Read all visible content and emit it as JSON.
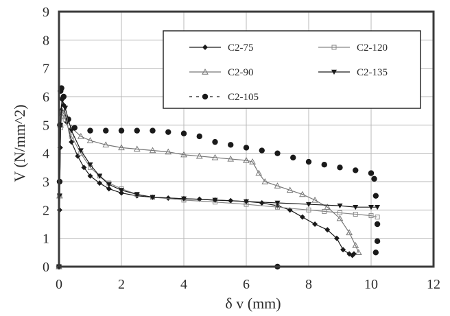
{
  "chart_data": {
    "type": "scatter",
    "title": "",
    "xlabel": "δ v (mm)",
    "ylabel": "V (N/mm^2)",
    "xlim": [
      0,
      12
    ],
    "ylim": [
      0,
      9
    ],
    "xticks": [
      "0",
      "2",
      "4",
      "6",
      "8",
      "10",
      "12"
    ],
    "yticks": [
      "0",
      "1",
      "2",
      "3",
      "4",
      "5",
      "6",
      "7",
      "8",
      "9"
    ],
    "grid": true,
    "legend_position": "top-right",
    "series": [
      {
        "name": "C2-75",
        "marker": "diamond",
        "color": "#1a1a1a",
        "line": true,
        "points": [
          [
            0,
            0
          ],
          [
            0.02,
            2.0
          ],
          [
            0.04,
            4.2
          ],
          [
            0.06,
            5.5
          ],
          [
            0.1,
            5.9
          ],
          [
            0.15,
            5.7
          ],
          [
            0.25,
            5.1
          ],
          [
            0.4,
            4.4
          ],
          [
            0.6,
            3.9
          ],
          [
            0.8,
            3.5
          ],
          [
            1.0,
            3.2
          ],
          [
            1.3,
            2.95
          ],
          [
            1.6,
            2.75
          ],
          [
            2.0,
            2.6
          ],
          [
            2.5,
            2.5
          ],
          [
            3.0,
            2.45
          ],
          [
            3.5,
            2.42
          ],
          [
            4.0,
            2.4
          ],
          [
            4.5,
            2.38
          ],
          [
            5.0,
            2.35
          ],
          [
            5.5,
            2.33
          ],
          [
            6.0,
            2.3
          ],
          [
            6.5,
            2.25
          ],
          [
            7.0,
            2.15
          ],
          [
            7.4,
            2.0
          ],
          [
            7.8,
            1.75
          ],
          [
            8.2,
            1.5
          ],
          [
            8.6,
            1.3
          ],
          [
            8.9,
            1.0
          ],
          [
            9.1,
            0.6
          ],
          [
            9.3,
            0.45
          ],
          [
            9.4,
            0.4
          ],
          [
            9.45,
            0.45
          ]
        ]
      },
      {
        "name": "C2-90",
        "marker": "triangle-up",
        "color": "#777777",
        "line": true,
        "points": [
          [
            0,
            0
          ],
          [
            0.02,
            2.5
          ],
          [
            0.05,
            5.0
          ],
          [
            0.1,
            5.5
          ],
          [
            0.2,
            5.3
          ],
          [
            0.4,
            4.9
          ],
          [
            0.7,
            4.6
          ],
          [
            1.0,
            4.45
          ],
          [
            1.5,
            4.3
          ],
          [
            2.0,
            4.2
          ],
          [
            2.5,
            4.15
          ],
          [
            3.0,
            4.1
          ],
          [
            3.5,
            4.05
          ],
          [
            4.0,
            3.95
          ],
          [
            4.5,
            3.9
          ],
          [
            5.0,
            3.85
          ],
          [
            5.5,
            3.8
          ],
          [
            6.0,
            3.75
          ],
          [
            6.2,
            3.7
          ],
          [
            6.4,
            3.3
          ],
          [
            6.6,
            3.0
          ],
          [
            7.0,
            2.85
          ],
          [
            7.4,
            2.7
          ],
          [
            7.8,
            2.55
          ],
          [
            8.2,
            2.35
          ],
          [
            8.6,
            2.1
          ],
          [
            9.0,
            1.7
          ],
          [
            9.3,
            1.2
          ],
          [
            9.5,
            0.75
          ],
          [
            9.6,
            0.5
          ]
        ]
      },
      {
        "name": "C2-105",
        "marker": "circle",
        "color": "#1a1a1a",
        "line": false,
        "points": [
          [
            0,
            0
          ],
          [
            0.02,
            3.0
          ],
          [
            0.03,
            5.0
          ],
          [
            0.05,
            6.2
          ],
          [
            0.08,
            6.3
          ],
          [
            0.15,
            6.0
          ],
          [
            0.3,
            5.2
          ],
          [
            0.5,
            4.9
          ],
          [
            1.0,
            4.8
          ],
          [
            1.5,
            4.8
          ],
          [
            2.0,
            4.8
          ],
          [
            2.5,
            4.8
          ],
          [
            3.0,
            4.8
          ],
          [
            3.5,
            4.75
          ],
          [
            4.0,
            4.7
          ],
          [
            4.5,
            4.6
          ],
          [
            5.0,
            4.4
          ],
          [
            5.5,
            4.3
          ],
          [
            6.0,
            4.2
          ],
          [
            6.5,
            4.1
          ],
          [
            7.0,
            4.0
          ],
          [
            7.5,
            3.85
          ],
          [
            8.0,
            3.7
          ],
          [
            8.5,
            3.6
          ],
          [
            9.0,
            3.5
          ],
          [
            9.5,
            3.4
          ],
          [
            10.0,
            3.3
          ],
          [
            10.1,
            3.1
          ],
          [
            10.15,
            2.5
          ],
          [
            10.2,
            1.5
          ],
          [
            10.2,
            0.9
          ],
          [
            10.15,
            0.5
          ],
          [
            7.0,
            0.0
          ]
        ]
      },
      {
        "name": "C2-120",
        "marker": "square-open",
        "color": "#888888",
        "line": true,
        "points": [
          [
            0,
            0
          ],
          [
            0.02,
            2.5
          ],
          [
            0.05,
            4.9
          ],
          [
            0.1,
            5.4
          ],
          [
            0.2,
            5.2
          ],
          [
            0.4,
            4.6
          ],
          [
            0.7,
            4.0
          ],
          [
            1.0,
            3.5
          ],
          [
            1.3,
            3.2
          ],
          [
            1.6,
            2.95
          ],
          [
            2.0,
            2.75
          ],
          [
            2.5,
            2.55
          ],
          [
            3.0,
            2.45
          ],
          [
            4.0,
            2.35
          ],
          [
            5.0,
            2.28
          ],
          [
            6.0,
            2.2
          ],
          [
            7.0,
            2.1
          ],
          [
            8.0,
            2.0
          ],
          [
            8.5,
            1.95
          ],
          [
            9.0,
            1.9
          ],
          [
            9.5,
            1.85
          ],
          [
            10.0,
            1.8
          ],
          [
            10.2,
            1.75
          ]
        ]
      },
      {
        "name": "C2-135",
        "marker": "triangle-down",
        "color": "#1a1a1a",
        "line": true,
        "points": [
          [
            0,
            0
          ],
          [
            0.02,
            2.5
          ],
          [
            0.05,
            5.0
          ],
          [
            0.1,
            5.9
          ],
          [
            0.2,
            5.6
          ],
          [
            0.4,
            4.8
          ],
          [
            0.7,
            4.1
          ],
          [
            1.0,
            3.6
          ],
          [
            1.3,
            3.2
          ],
          [
            1.6,
            2.9
          ],
          [
            2.0,
            2.7
          ],
          [
            2.5,
            2.55
          ],
          [
            3.0,
            2.45
          ],
          [
            4.0,
            2.4
          ],
          [
            5.0,
            2.35
          ],
          [
            6.0,
            2.3
          ],
          [
            7.0,
            2.25
          ],
          [
            8.0,
            2.2
          ],
          [
            9.0,
            2.15
          ],
          [
            9.5,
            2.1
          ],
          [
            10.0,
            2.1
          ],
          [
            10.2,
            2.1
          ]
        ]
      }
    ]
  }
}
